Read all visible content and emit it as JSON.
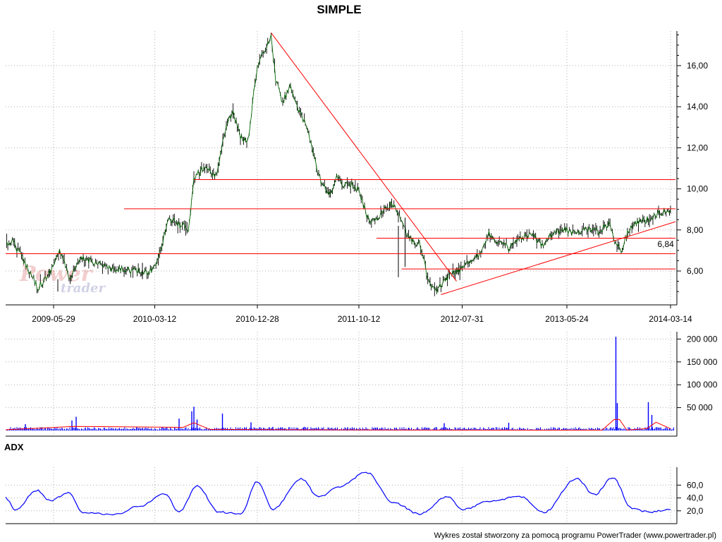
{
  "chart_data": [
    {
      "type": "line",
      "title": "SIMPLE",
      "x_tick_labels": [
        "2009-05-29",
        "2010-03-12",
        "2010-12-28",
        "2011-10-12",
        "2012-07-31",
        "2013-05-24",
        "2014-03-14"
      ],
      "y_tick_labels": [
        "6,00",
        "8,00",
        "10,00",
        "12,00",
        "14,00",
        "16,00"
      ],
      "ylim": [
        4.5,
        17.8
      ],
      "grid": true,
      "series": [
        {
          "color": "#006400",
          "x": [
            "2008-12-31",
            "2009-02-01",
            "2009-03-15",
            "2009-04-15",
            "2009-05-15",
            "2009-06-15",
            "2009-07-15",
            "2009-08-15",
            "2009-09-15",
            "2009-10-15",
            "2009-11-15",
            "2009-12-15",
            "2010-01-15",
            "2010-02-15",
            "2010-03-12",
            "2010-04-01",
            "2010-04-20",
            "2010-05-10",
            "2010-06-01",
            "2010-06-15",
            "2010-07-01",
            "2010-08-01",
            "2010-09-01",
            "2010-10-01",
            "2010-10-20",
            "2010-11-10",
            "2010-12-01",
            "2010-12-28",
            "2011-01-20",
            "2011-02-05",
            "2011-02-18",
            "2011-03-10",
            "2011-04-01",
            "2011-04-20",
            "2011-05-20",
            "2011-06-20",
            "2011-07-20",
            "2011-08-10",
            "2011-08-25",
            "2011-09-15",
            "2011-10-12",
            "2011-11-10",
            "2011-12-10",
            "2012-01-10",
            "2012-02-01",
            "2012-03-01",
            "2012-04-01",
            "2012-05-01",
            "2012-05-20",
            "2012-06-10",
            "2012-06-25",
            "2012-07-31",
            "2012-08-20",
            "2012-09-15",
            "2012-10-15",
            "2012-11-10",
            "2012-12-10",
            "2013-01-15",
            "2013-02-15",
            "2013-03-15",
            "2013-04-15",
            "2013-05-24",
            "2013-06-20",
            "2013-07-20",
            "2013-08-20",
            "2013-09-20",
            "2013-10-10",
            "2013-10-25",
            "2013-11-15",
            "2013-12-10",
            "2014-01-10",
            "2014-02-05",
            "2014-03-14"
          ],
          "y": [
            7.1,
            7.5,
            6.2,
            5.2,
            5.8,
            7.0,
            5.6,
            6.6,
            6.5,
            6.3,
            6.0,
            6.1,
            6.0,
            5.9,
            6.2,
            7.3,
            8.6,
            8.3,
            8.2,
            7.8,
            10.5,
            11.1,
            10.6,
            13.1,
            13.8,
            12.5,
            12.3,
            16.0,
            16.8,
            17.4,
            15.3,
            14.2,
            15.1,
            13.9,
            12.9,
            10.6,
            9.6,
            10.6,
            10.2,
            10.3,
            9.9,
            8.4,
            8.7,
            9.3,
            8.8,
            7.6,
            7.3,
            5.3,
            5.0,
            5.5,
            5.8,
            6.1,
            6.5,
            6.8,
            7.8,
            7.4,
            7.1,
            7.6,
            7.7,
            7.3,
            7.9,
            8.0,
            7.8,
            8.1,
            7.9,
            8.3,
            7.4,
            7.0,
            8.0,
            8.4,
            8.5,
            8.8,
            9.0
          ]
        }
      ],
      "lines": [
        {
          "color": "#ff0000",
          "x1": "2008-12-31",
          "y1": 6.84,
          "x2": "2014-03-31",
          "y2": 6.84
        },
        {
          "color": "#ff0000",
          "x1": "2009-12-15",
          "y1": 9.03,
          "x2": "2014-03-31",
          "y2": 9.03
        },
        {
          "color": "#ff0000",
          "x1": "2010-07-01",
          "y1": 10.45,
          "x2": "2014-03-31",
          "y2": 10.45
        },
        {
          "color": "#ff0000",
          "x1": "2011-12-01",
          "y1": 7.6,
          "x2": "2014-03-31",
          "y2": 7.6
        },
        {
          "color": "#ff0000",
          "x1": "2012-02-10",
          "y1": 6.1,
          "x2": "2014-03-31",
          "y2": 6.1
        },
        {
          "color": "#ff0000",
          "x1": "2011-02-05",
          "y1": 17.6,
          "x2": "2012-07-15",
          "y2": 5.5
        },
        {
          "color": "#ff0000",
          "x1": "2012-06-01",
          "y1": 4.85,
          "x2": "2014-03-31",
          "y2": 8.4
        }
      ],
      "annotations": [
        {
          "text": "6,84",
          "x": "2014-02-05",
          "y": 7.3,
          "color": "#cc0000"
        }
      ]
    },
    {
      "type": "bar",
      "y_tick_labels": [
        "50 000",
        "100 000",
        "150 000",
        "200 000"
      ],
      "ylim": [
        0,
        210000
      ],
      "grid": true,
      "series": [
        {
          "color": "#0000ff",
          "x": [
            "2009-03-10",
            "2009-07-20",
            "2009-08-01",
            "2010-05-20",
            "2010-06-25",
            "2010-07-01",
            "2010-07-10",
            "2010-09-20",
            "2010-12-10",
            "2011-02-10",
            "2011-05-10",
            "2011-09-10",
            "2012-03-01",
            "2012-06-10",
            "2012-12-10",
            "2013-10-10",
            "2013-10-14",
            "2014-01-10",
            "2014-01-20"
          ],
          "values": [
            14000,
            22000,
            30000,
            26000,
            42000,
            52000,
            24000,
            37000,
            18000,
            8000,
            8000,
            7000,
            6000,
            16000,
            17000,
            205000,
            60000,
            62000,
            34000
          ]
        },
        {
          "color": "#ff0000",
          "x": [
            "2008-12-31",
            "2009-07-25",
            "2010-06-01",
            "2010-07-01",
            "2010-08-15",
            "2011-06-01",
            "2012-06-01",
            "2013-09-01",
            "2013-10-05",
            "2013-10-20",
            "2013-11-10",
            "2014-01-05",
            "2014-02-01",
            "2014-03-14"
          ],
          "values": [
            1500,
            9000,
            7000,
            17000,
            2500,
            1500,
            1000,
            800,
            24000,
            24000,
            1000,
            4000,
            18000,
            4000
          ]
        }
      ]
    },
    {
      "type": "line",
      "title": "ADX",
      "y_tick_labels": [
        "20,0",
        "40,0",
        "60,0"
      ],
      "ylim": [
        0,
        85
      ],
      "grid": true,
      "series": [
        {
          "color": "#0000ff",
          "x": [
            "2008-12-31",
            "2009-02-10",
            "2009-04-10",
            "2009-05-20",
            "2009-07-10",
            "2009-08-20",
            "2009-11-20",
            "2010-01-20",
            "2010-04-10",
            "2010-05-20",
            "2010-07-10",
            "2010-09-10",
            "2010-11-10",
            "2010-12-28",
            "2011-02-10",
            "2011-05-01",
            "2011-06-20",
            "2011-08-20",
            "2011-11-01",
            "2012-01-20",
            "2012-04-01",
            "2012-06-20",
            "2012-08-01",
            "2012-10-10",
            "2013-01-10",
            "2013-03-20",
            "2013-06-20",
            "2013-08-10",
            "2013-10-01",
            "2013-11-25",
            "2014-01-10",
            "2014-03-14"
          ],
          "y": [
            40,
            22,
            52,
            36,
            48,
            18,
            14,
            26,
            46,
            18,
            58,
            18,
            15,
            66,
            22,
            70,
            42,
            58,
            80,
            32,
            15,
            42,
            22,
            34,
            42,
            18,
            70,
            45,
            72,
            24,
            18,
            22
          ]
        }
      ]
    }
  ],
  "footer": "Wykres został stworzony za pomocą programu PowerTrader (www.powertrader.pl)",
  "watermark": "Power trader"
}
